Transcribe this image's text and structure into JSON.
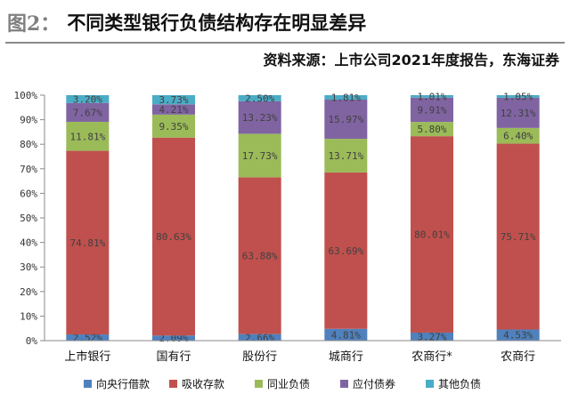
{
  "figure": {
    "label": "图2：",
    "title": "不同类型银行负债结构存在明显差异",
    "source": "资料来源：上市公司2021年度报告，东海证券"
  },
  "colors": {
    "series": [
      "#4f81bd",
      "#c0504d",
      "#9bbb59",
      "#8064a2",
      "#4bacc6"
    ],
    "axis": "#8a8a8a",
    "label_text": "#404040",
    "grid": "none"
  },
  "chart_data": {
    "type": "bar",
    "stacked": true,
    "percent": true,
    "categories": [
      "上市银行",
      "国有行",
      "股份行",
      "城商行",
      "农商行*",
      "农商行"
    ],
    "series": [
      {
        "name": "向央行借款",
        "values": [
          2.52,
          2.09,
          2.66,
          4.81,
          3.27,
          4.53
        ],
        "labels": [
          "2.52%",
          "2.09%",
          "2.66%",
          "4.81%",
          "3.27%",
          "4.53%"
        ]
      },
      {
        "name": "吸收存款",
        "values": [
          74.81,
          80.63,
          63.88,
          63.69,
          80.01,
          75.71
        ],
        "labels": [
          "74.81%",
          "80.63%",
          "63.88%",
          "63.69%",
          "80.01%",
          "75.71%"
        ]
      },
      {
        "name": "同业负债",
        "values": [
          11.81,
          9.35,
          17.73,
          13.71,
          5.8,
          6.4
        ],
        "labels": [
          "11.81%",
          "9.35%",
          "17.73%",
          "13.71%",
          "5.80%",
          "6.40%"
        ]
      },
      {
        "name": "应付债券",
        "values": [
          7.67,
          4.21,
          13.23,
          15.97,
          9.91,
          12.31
        ],
        "labels": [
          "7.67%",
          "4.21%",
          "13.23%",
          "15.97%",
          "9.91%",
          "12.31%"
        ]
      },
      {
        "name": "其他负债",
        "values": [
          3.2,
          3.73,
          2.5,
          1.81,
          1.01,
          1.05
        ],
        "labels": [
          "3.20%",
          "3.73%",
          "2.50%",
          "1.81%",
          "1.01%",
          "1.05%"
        ]
      }
    ],
    "yticks": [
      "0%",
      "10%",
      "20%",
      "30%",
      "40%",
      "50%",
      "60%",
      "70%",
      "80%",
      "90%",
      "100%"
    ],
    "ylim": [
      0,
      100
    ],
    "legend_position": "bottom"
  }
}
